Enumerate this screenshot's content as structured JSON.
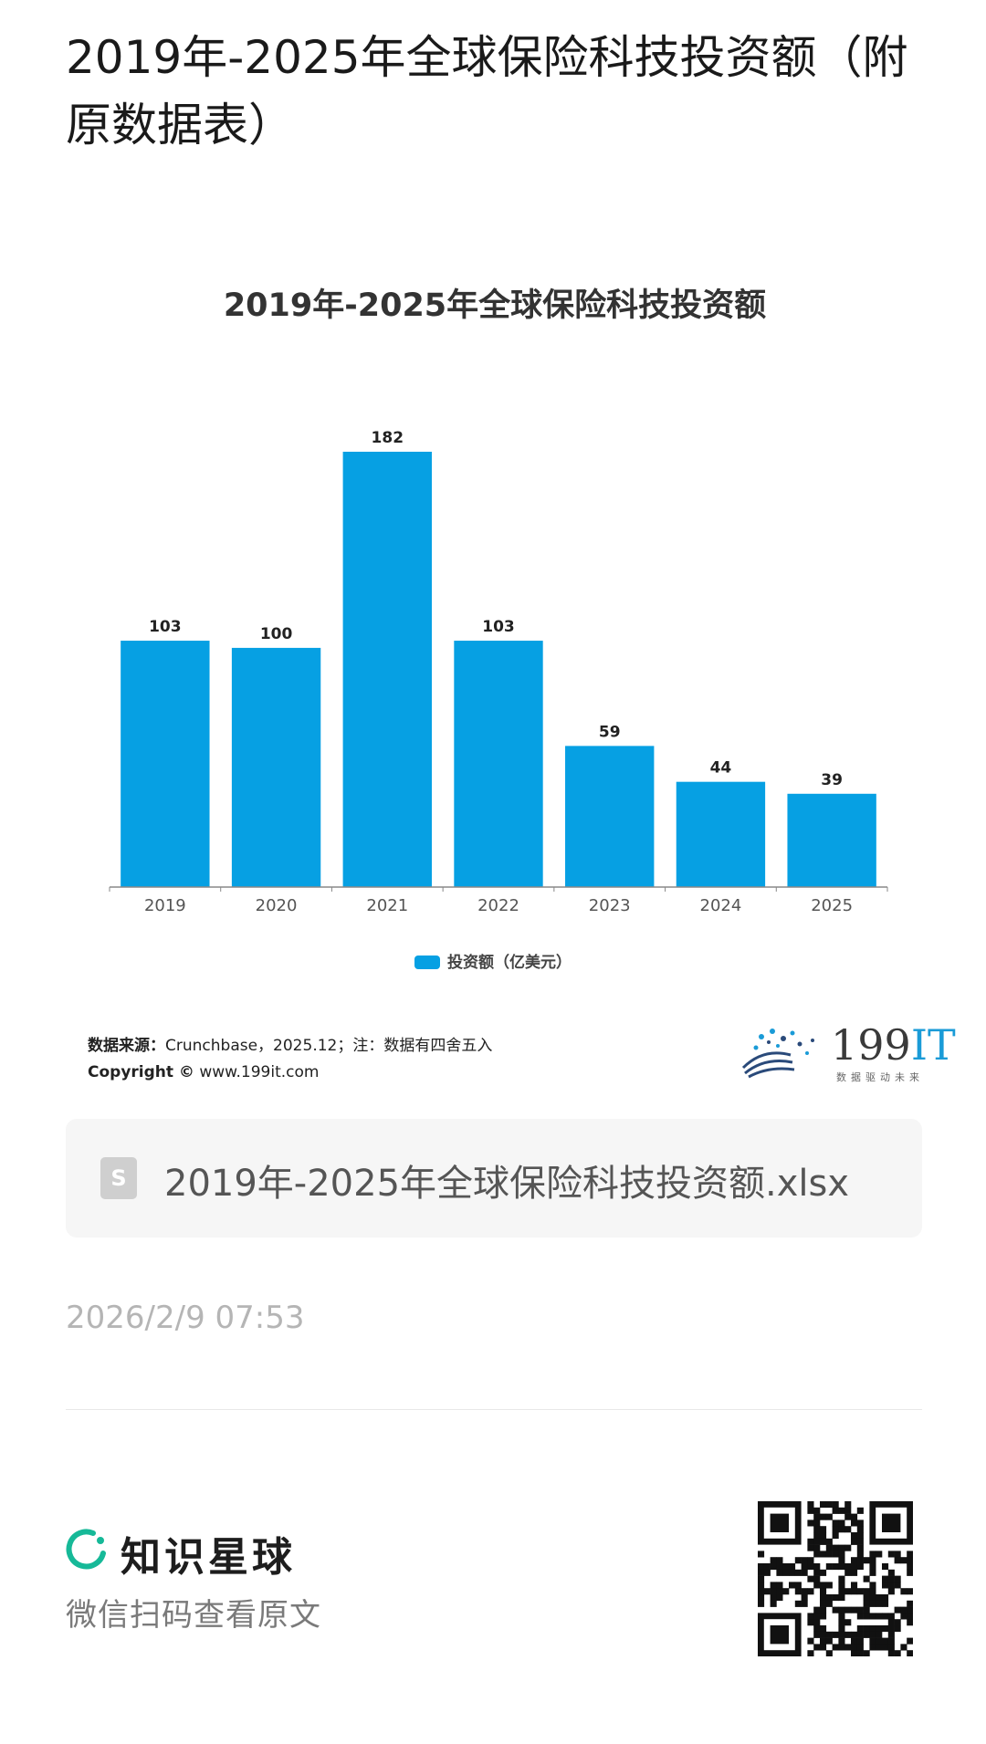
{
  "post": {
    "title": "2019年-2025年全球保险科技投资额（附原数据表）",
    "date": "2026/2/9 07:53"
  },
  "chart_data": {
    "type": "bar",
    "title": "2019年-2025年全球保险科技投资额",
    "categories": [
      "2019",
      "2020",
      "2021",
      "2022",
      "2023",
      "2024",
      "2025"
    ],
    "series": [
      {
        "name": "投资额（亿美元）",
        "values": [
          103,
          100,
          182,
          103,
          59,
          44,
          39
        ],
        "color": "#06a0e3"
      }
    ],
    "ylim": [
      0,
      182
    ],
    "grid": false,
    "legend_position": "bottom",
    "data_labels": true
  },
  "source": {
    "label": "数据来源：",
    "text": "Crunchbase，2025.12；注：数据有四舍五入",
    "copyright_label": "Copyright ©",
    "copyright_site": "www.199it.com"
  },
  "brand": {
    "number": "199",
    "suffix": "IT",
    "tagline": "数据驱动未来"
  },
  "file": {
    "icon_letter": "S",
    "name": "2019年-2025年全球保险科技投资额.xlsx"
  },
  "footer": {
    "planet_name": "知识星球",
    "scan_hint": "微信扫码查看原文",
    "accent": "#16b998"
  }
}
